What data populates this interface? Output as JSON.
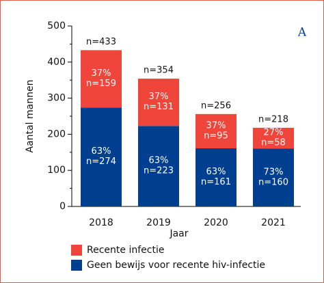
{
  "chart_data": {
    "type": "stacked_bar",
    "panel_label": "A",
    "ylabel": "Aantal mannen",
    "xlabel": "Jaar",
    "categories": [
      "2018",
      "2019",
      "2020",
      "2021"
    ],
    "series": [
      {
        "name": "Geen bewijs voor recente hiv-infectie",
        "color": "#003f8f",
        "values": [
          274,
          223,
          161,
          160
        ],
        "value_labels": [
          "n=274",
          "n=223",
          "n=161",
          "n=160"
        ],
        "shares": [
          63,
          63,
          63,
          73
        ],
        "share_labels": [
          "63%",
          "63%",
          "63%",
          "73%"
        ]
      },
      {
        "name": "Recente infectie",
        "color": "#f0453a",
        "values": [
          159,
          131,
          95,
          58
        ],
        "value_labels": [
          "n=159",
          "n=131",
          "n=95",
          "n=58"
        ],
        "shares": [
          37,
          37,
          37,
          27
        ],
        "share_labels": [
          "37%",
          "37%",
          "37%",
          "27%"
        ]
      }
    ],
    "totals": [
      433,
      354,
      256,
      218
    ],
    "total_labels": [
      "n=433",
      "n=354",
      "n=256",
      "n=218"
    ],
    "ylim": [
      0,
      500
    ],
    "yticks": [
      0,
      100,
      200,
      300,
      400,
      500
    ],
    "minor_yticks": [
      50,
      150,
      250,
      350,
      450
    ]
  }
}
